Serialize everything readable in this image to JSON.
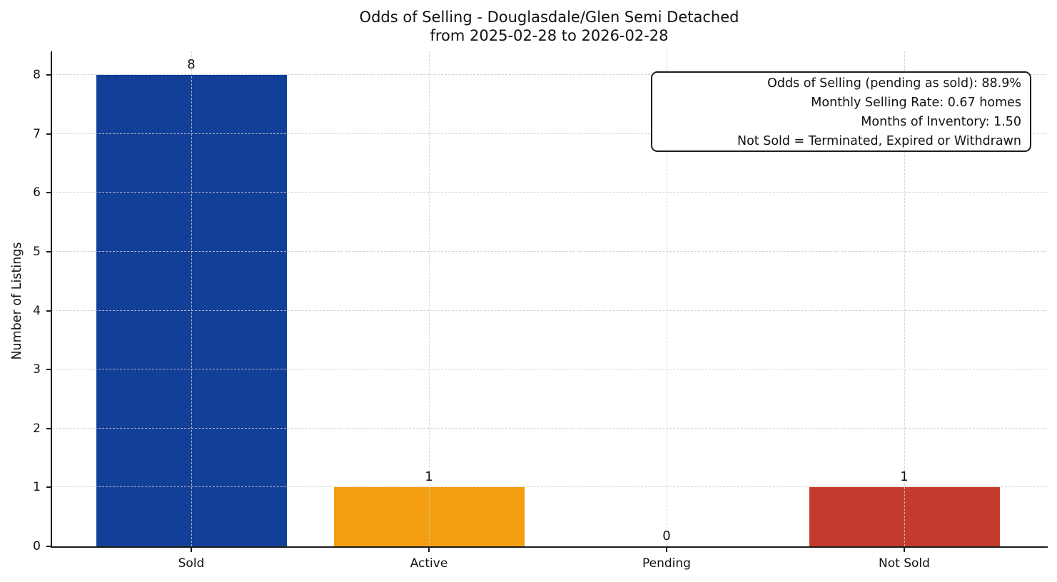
{
  "title": {
    "line1": "Odds of Selling - Douglasdale/Glen Semi Detached",
    "line2": "from 2025-02-28 to 2026-02-28"
  },
  "annotation": {
    "lines": [
      "Odds of Selling (pending as sold): 88.9%",
      "Monthly Selling Rate: 0.67 homes",
      "Months of Inventory: 1.50",
      "Not Sold = Terminated, Expired or Withdrawn"
    ]
  },
  "chart_data": {
    "type": "bar",
    "title": "Odds of Selling - Douglasdale/Glen Semi Detached\nfrom 2025-02-28 to 2026-02-28",
    "categories": [
      "Sold",
      "Active",
      "Pending",
      "Not Sold"
    ],
    "values": [
      8,
      1,
      0,
      1
    ],
    "bar_colors": [
      "#123f97",
      "#f49e11",
      null,
      "#c43b2d"
    ],
    "xlabel": "",
    "ylabel": "Number of Listings",
    "ylim": [
      0,
      8.4
    ],
    "yticks": [
      0,
      1,
      2,
      3,
      4,
      5,
      6,
      7,
      8
    ],
    "grid": "dashed, light gray, horizontal at each integer and vertical at each category center, drawn over bars",
    "legend": "none",
    "annotation_lines": [
      "Odds of Selling (pending as sold): 88.9%",
      "Monthly Selling Rate: 0.67 homes",
      "Months of Inventory: 1.50",
      "Not Sold = Terminated, Expired or Withdrawn"
    ]
  }
}
